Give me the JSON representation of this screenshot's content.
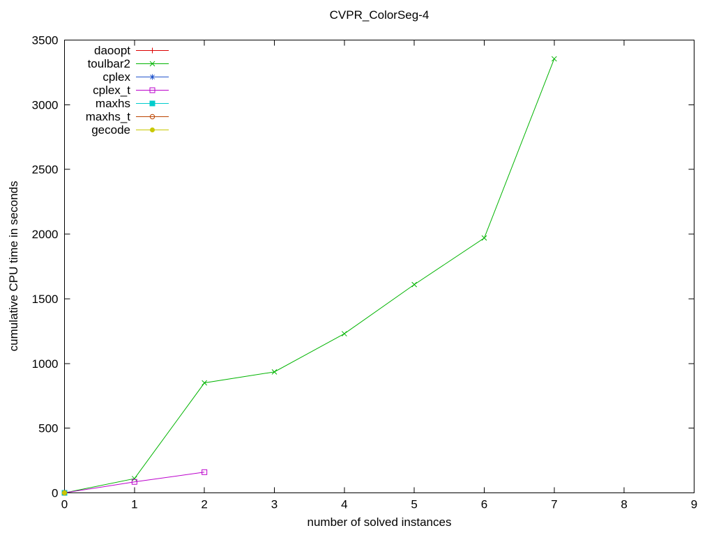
{
  "chart_data": {
    "type": "line",
    "title": "CVPR_ColorSeg-4",
    "xlabel": "number of solved instances",
    "ylabel": "cumulative CPU time in seconds",
    "xlim": [
      0,
      9
    ],
    "ylim": [
      0,
      3500
    ],
    "xticks": [
      0,
      1,
      2,
      3,
      4,
      5,
      6,
      7,
      8,
      9
    ],
    "yticks": [
      0,
      500,
      1000,
      1500,
      2000,
      2500,
      3000,
      3500
    ],
    "grid": false,
    "legend_position": "top-left-inside",
    "frame_color": "#000000",
    "series": [
      {
        "name": "daoopt",
        "color": "#dd0000",
        "marker": "plus",
        "points": [
          [
            0,
            0
          ]
        ]
      },
      {
        "name": "toulbar2",
        "color": "#00b400",
        "marker": "cross",
        "points": [
          [
            0,
            0
          ],
          [
            1,
            110
          ],
          [
            2,
            850
          ],
          [
            3,
            935
          ],
          [
            4,
            1230
          ],
          [
            5,
            1610
          ],
          [
            6,
            1970
          ],
          [
            7,
            3355
          ]
        ]
      },
      {
        "name": "cplex",
        "color": "#2255cc",
        "marker": "asterisk",
        "points": [
          [
            0,
            0
          ]
        ]
      },
      {
        "name": "cplex_t",
        "color": "#bb00cc",
        "marker": "square-open",
        "points": [
          [
            0,
            0
          ],
          [
            1,
            85
          ],
          [
            2,
            160
          ]
        ]
      },
      {
        "name": "maxhs",
        "color": "#00cccc",
        "marker": "square-filled",
        "points": [
          [
            0,
            0
          ]
        ]
      },
      {
        "name": "maxhs_t",
        "color": "#bb4400",
        "marker": "circle-open",
        "points": [
          [
            0,
            0
          ]
        ]
      },
      {
        "name": "gecode",
        "color": "#c8c800",
        "marker": "circle-filled",
        "points": [
          [
            0,
            0
          ]
        ]
      }
    ]
  }
}
